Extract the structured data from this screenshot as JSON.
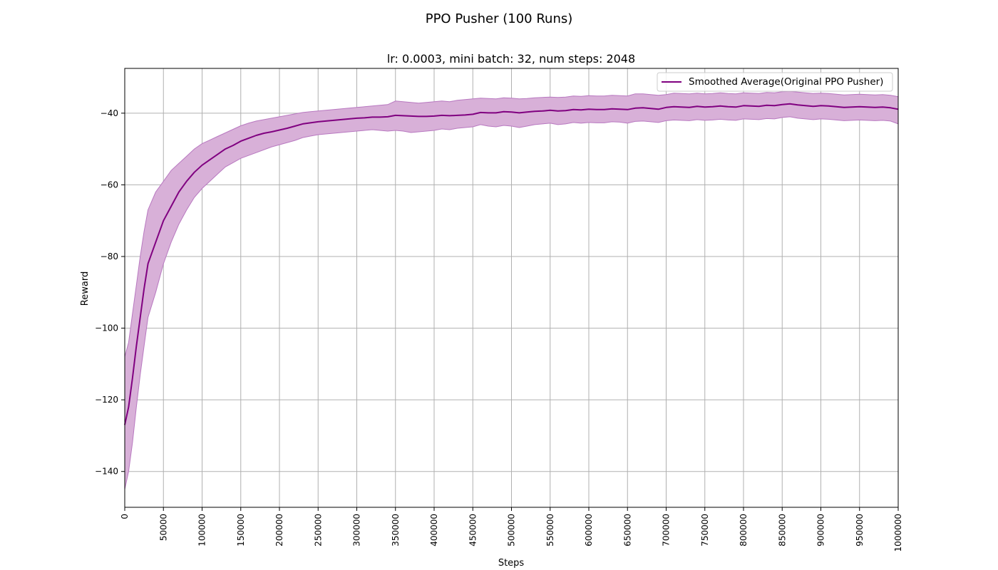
{
  "figure": {
    "suptitle": "PPO Pusher (100 Runs)"
  },
  "chart_data": {
    "type": "line",
    "title": "lr: 0.0003, mini batch: 32, num steps: 2048",
    "xlabel": "Steps",
    "ylabel": "Reward",
    "xlim": [
      0,
      1000000
    ],
    "ylim": [
      -150,
      -27.5
    ],
    "x_ticks": [
      0,
      50000,
      100000,
      150000,
      200000,
      250000,
      300000,
      350000,
      400000,
      450000,
      500000,
      550000,
      600000,
      650000,
      700000,
      750000,
      800000,
      850000,
      900000,
      950000,
      1000000
    ],
    "y_ticks": [
      -140,
      -120,
      -100,
      -80,
      -60,
      -40
    ],
    "grid": true,
    "legend_position": "upper-right",
    "colors": {
      "line": "#800080",
      "band": "#d8b0d8",
      "band_edge": "#b878c0",
      "grid": "#b0b0b0"
    },
    "series": [
      {
        "name": "Smoothed Average(Original PPO Pusher)",
        "x": [
          0,
          5000,
          10000,
          15000,
          20000,
          25000,
          30000,
          40000,
          50000,
          60000,
          70000,
          80000,
          90000,
          100000,
          110000,
          120000,
          130000,
          140000,
          150000,
          160000,
          170000,
          180000,
          190000,
          200000,
          210000,
          220000,
          230000,
          240000,
          250000,
          260000,
          270000,
          280000,
          290000,
          300000,
          310000,
          320000,
          330000,
          340000,
          350000,
          360000,
          370000,
          380000,
          390000,
          400000,
          410000,
          420000,
          430000,
          440000,
          450000,
          460000,
          470000,
          480000,
          490000,
          500000,
          510000,
          520000,
          530000,
          540000,
          550000,
          560000,
          570000,
          580000,
          590000,
          600000,
          610000,
          620000,
          630000,
          640000,
          650000,
          660000,
          670000,
          680000,
          690000,
          700000,
          710000,
          720000,
          730000,
          740000,
          750000,
          760000,
          770000,
          780000,
          790000,
          800000,
          810000,
          820000,
          830000,
          840000,
          850000,
          860000,
          870000,
          880000,
          890000,
          900000,
          910000,
          920000,
          930000,
          940000,
          950000,
          960000,
          970000,
          980000,
          990000,
          1000000
        ],
        "mean": [
          -127,
          -122,
          -114,
          -105,
          -97,
          -89,
          -82,
          -76,
          -70,
          -66,
          -62,
          -59,
          -56.5,
          -54.5,
          -53,
          -51.5,
          -50,
          -49,
          -47.8,
          -47,
          -46.2,
          -45.6,
          -45.2,
          -44.7,
          -44.2,
          -43.6,
          -43,
          -42.7,
          -42.4,
          -42.2,
          -42,
          -41.8,
          -41.6,
          -41.4,
          -41.3,
          -41.1,
          -41.1,
          -41,
          -40.6,
          -40.7,
          -40.8,
          -40.9,
          -40.9,
          -40.8,
          -40.6,
          -40.7,
          -40.6,
          -40.5,
          -40.3,
          -39.8,
          -39.9,
          -39.9,
          -39.6,
          -39.7,
          -39.9,
          -39.7,
          -39.5,
          -39.4,
          -39.2,
          -39.4,
          -39.3,
          -39.0,
          -39.1,
          -38.9,
          -39.0,
          -39.0,
          -38.8,
          -38.9,
          -39.0,
          -38.6,
          -38.5,
          -38.7,
          -38.9,
          -38.4,
          -38.2,
          -38.3,
          -38.4,
          -38.1,
          -38.3,
          -38.2,
          -38.0,
          -38.2,
          -38.3,
          -37.9,
          -38.0,
          -38.1,
          -37.8,
          -37.9,
          -37.6,
          -37.4,
          -37.7,
          -37.9,
          -38.1,
          -37.9,
          -38.0,
          -38.2,
          -38.4,
          -38.3,
          -38.2,
          -38.3,
          -38.4,
          -38.3,
          -38.5,
          -38.9
        ],
        "upper": [
          -108,
          -104,
          -96,
          -88,
          -80,
          -73,
          -67,
          -62,
          -59,
          -56,
          -54,
          -52,
          -50,
          -48.5,
          -47.5,
          -46.5,
          -45.5,
          -44.5,
          -43.5,
          -42.8,
          -42.2,
          -41.8,
          -41.4,
          -41.0,
          -40.6,
          -40.2,
          -39.8,
          -39.6,
          -39.4,
          -39.2,
          -39.0,
          -38.8,
          -38.6,
          -38.4,
          -38.2,
          -38.0,
          -37.8,
          -37.6,
          -36.6,
          -36.8,
          -37.0,
          -37.2,
          -37.0,
          -36.8,
          -36.6,
          -36.8,
          -36.4,
          -36.2,
          -36.0,
          -35.8,
          -35.9,
          -36.0,
          -35.7,
          -35.8,
          -36.0,
          -35.9,
          -35.7,
          -35.6,
          -35.5,
          -35.6,
          -35.5,
          -35.2,
          -35.3,
          -35.1,
          -35.2,
          -35.2,
          -35.0,
          -35.1,
          -35.2,
          -34.6,
          -34.6,
          -34.8,
          -35.0,
          -34.8,
          -34.4,
          -34.5,
          -34.6,
          -34.4,
          -34.6,
          -34.5,
          -34.3,
          -34.5,
          -34.6,
          -34.3,
          -34.4,
          -34.5,
          -34.2,
          -34.3,
          -34.0,
          -33.9,
          -34.1,
          -34.3,
          -34.5,
          -34.4,
          -34.5,
          -34.7,
          -34.9,
          -34.8,
          -34.7,
          -34.8,
          -34.9,
          -34.8,
          -35.0,
          -35.4
        ],
        "lower": [
          -145,
          -140,
          -132,
          -122,
          -113,
          -105,
          -97,
          -90,
          -82,
          -76,
          -71,
          -67,
          -63.5,
          -61,
          -59,
          -57,
          -55,
          -53.8,
          -52.6,
          -51.8,
          -51.0,
          -50.2,
          -49.4,
          -48.8,
          -48.2,
          -47.6,
          -46.8,
          -46.4,
          -46.0,
          -45.8,
          -45.6,
          -45.4,
          -45.2,
          -45.0,
          -44.8,
          -44.6,
          -44.8,
          -45.0,
          -44.8,
          -45.0,
          -45.4,
          -45.2,
          -45.0,
          -44.8,
          -44.4,
          -44.6,
          -44.2,
          -44.0,
          -43.8,
          -43.2,
          -43.6,
          -43.8,
          -43.4,
          -43.6,
          -44.0,
          -43.6,
          -43.2,
          -43.0,
          -42.8,
          -43.2,
          -43.0,
          -42.6,
          -42.8,
          -42.6,
          -42.7,
          -42.7,
          -42.4,
          -42.5,
          -42.8,
          -42.3,
          -42.2,
          -42.4,
          -42.6,
          -42.1,
          -41.9,
          -42.0,
          -42.1,
          -41.8,
          -42.0,
          -41.9,
          -41.7,
          -41.9,
          -42.0,
          -41.6,
          -41.7,
          -41.8,
          -41.5,
          -41.6,
          -41.2,
          -41.0,
          -41.4,
          -41.6,
          -41.8,
          -41.6,
          -41.7,
          -41.9,
          -42.1,
          -42.0,
          -41.9,
          -42.0,
          -42.1,
          -42.0,
          -42.2,
          -43.0
        ]
      }
    ]
  }
}
